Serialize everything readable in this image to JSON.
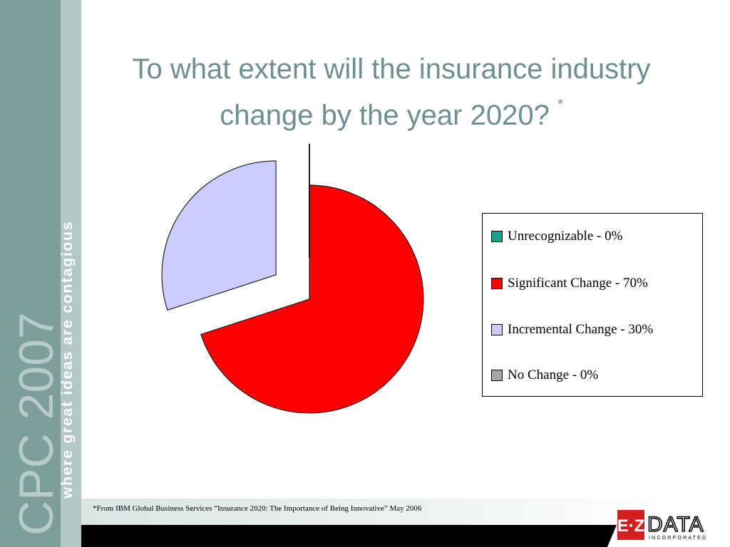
{
  "banner": {
    "brand": "CPC 2007",
    "tagline": "where great ideas are contagious"
  },
  "slide": {
    "title_line1": "To what extent will the insurance industry",
    "title_line2": "change by the year 2020?",
    "title_mark": "*"
  },
  "chart_data": {
    "type": "pie",
    "title": "",
    "series": [
      {
        "label": "Unrecognizable - 0%",
        "value": 0,
        "color": "#14a489"
      },
      {
        "label": "Significant Change - 70%",
        "value": 70,
        "color": "#ff0000"
      },
      {
        "label": "Incremental Change - 30%",
        "value": 30,
        "color": "#ccccff"
      },
      {
        "label": "No Change - 0%",
        "value": 0,
        "color": "#a6a6a6"
      }
    ],
    "legend_position": "right"
  },
  "footnote": "*From IBM Global Business Services “Insurance 2020: The Importance of Being Innovative” May 2006",
  "logo": {
    "name": "EZ DATA",
    "subtext": "INCORPORATED",
    "accent": "#d21f1f"
  }
}
